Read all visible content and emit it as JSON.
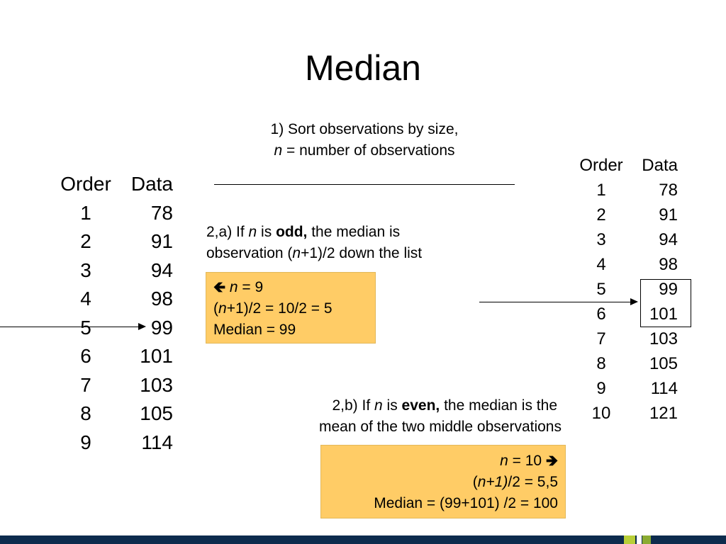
{
  "title": "Median",
  "step1": {
    "line1": "1) Sort observations by size,",
    "n": "n",
    "line2_rest": " = number of observations"
  },
  "step2a": {
    "p1": "2,a) If ",
    "n": "n",
    "p2": " is ",
    "odd": "odd,",
    "p3": " the median is",
    "line2a": "observation (",
    "line2n": "n",
    "line2b": "+1)/2 down the list"
  },
  "box_odd": {
    "arrow": "🡸",
    "n": "n",
    "eq1": " = 9",
    "l2a": "(",
    "l2n": "n",
    "l2b": "+1)/2 = 10/2 = 5",
    "l3": "Median = 99"
  },
  "step2b": {
    "p1": "2,b) If ",
    "n": "n",
    "p2": " is ",
    "even": "even,",
    "p3": " the median is the",
    "line2": "mean of the two middle observations"
  },
  "box_even": {
    "n": "n",
    "eq1": " = 10 ",
    "arrow": "🡺",
    "l2a": "(",
    "l2n": "n+1)",
    "l2b": "/2 = 5,5",
    "l3": "Median = (99+101) /2 = 100"
  },
  "left_table": {
    "headers": [
      "Order",
      "Data"
    ],
    "rows": [
      [
        "1",
        "78"
      ],
      [
        "2",
        "91"
      ],
      [
        "3",
        "94"
      ],
      [
        "4",
        "98"
      ],
      [
        "5",
        "99"
      ],
      [
        "6",
        "101"
      ],
      [
        "7",
        "103"
      ],
      [
        "8",
        "105"
      ],
      [
        "9",
        "114"
      ]
    ]
  },
  "right_table": {
    "headers": [
      "Order",
      "Data"
    ],
    "rows": [
      [
        "1",
        "78"
      ],
      [
        "2",
        "91"
      ],
      [
        "3",
        "94"
      ],
      [
        "4",
        "98"
      ],
      [
        "5",
        "99"
      ],
      [
        "6",
        "101"
      ],
      [
        "7",
        "103"
      ],
      [
        "8",
        "105"
      ],
      [
        "9",
        "114"
      ],
      [
        "10",
        "121"
      ]
    ]
  },
  "colors": {
    "highlight_box": "#ffcc66",
    "footer_bar": "#0d2b4d",
    "accent_green": "#b9cf38"
  }
}
